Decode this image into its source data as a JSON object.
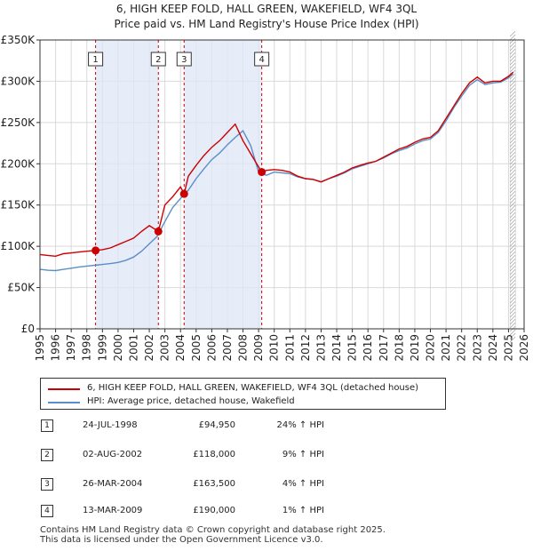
{
  "chart_data": {
    "type": "line",
    "title": "6, HIGH KEEP FOLD, HALL GREEN, WAKEFIELD, WF4 3QL",
    "subtitle": "Price paid vs. HM Land Registry's House Price Index (HPI)",
    "xlabel": "",
    "ylabel": "",
    "xlim": [
      1995,
      2026
    ],
    "ylim": [
      0,
      350000
    ],
    "y_ticks": [
      {
        "value": 0,
        "label": "£0"
      },
      {
        "value": 50000,
        "label": "£50K"
      },
      {
        "value": 100000,
        "label": "£100K"
      },
      {
        "value": 150000,
        "label": "£150K"
      },
      {
        "value": 200000,
        "label": "£200K"
      },
      {
        "value": 250000,
        "label": "£250K"
      },
      {
        "value": 300000,
        "label": "£300K"
      },
      {
        "value": 350000,
        "label": "£350K"
      }
    ],
    "x_ticks": [
      "1995",
      "1996",
      "1997",
      "1998",
      "1999",
      "2000",
      "2001",
      "2002",
      "2003",
      "2004",
      "2005",
      "2006",
      "2007",
      "2008",
      "2009",
      "2010",
      "2011",
      "2012",
      "2013",
      "2014",
      "2015",
      "2016",
      "2017",
      "2018",
      "2019",
      "2020",
      "2021",
      "2022",
      "2023",
      "2024",
      "2025",
      "2026"
    ],
    "grid": true,
    "series": [
      {
        "name": "6, HIGH KEEP FOLD, HALL GREEN, WAKEFIELD, WF4 3QL (detached house)",
        "color": "#cc0000",
        "x": [
          1995.0,
          1995.5,
          1996.0,
          1996.5,
          1997.0,
          1997.5,
          1998.0,
          1998.56,
          1999.0,
          1999.5,
          2000.0,
          2000.5,
          2001.0,
          2001.5,
          2002.0,
          2002.58,
          2003.0,
          2003.5,
          2004.0,
          2004.23,
          2004.5,
          2005.0,
          2005.5,
          2006.0,
          2006.5,
          2007.0,
          2007.5,
          2008.0,
          2008.5,
          2009.2,
          2009.5,
          2010.0,
          2010.5,
          2011.0,
          2011.5,
          2012.0,
          2012.5,
          2013.0,
          2013.5,
          2014.0,
          2014.5,
          2015.0,
          2015.5,
          2016.0,
          2016.5,
          2017.0,
          2017.5,
          2018.0,
          2018.5,
          2019.0,
          2019.5,
          2020.0,
          2020.5,
          2021.0,
          2021.5,
          2022.0,
          2022.5,
          2023.0,
          2023.5,
          2024.0,
          2024.5,
          2025.0,
          2025.3
        ],
        "values": [
          90000,
          89000,
          88000,
          91000,
          92000,
          93000,
          94000,
          94950,
          96000,
          98000,
          102000,
          106000,
          110000,
          118000,
          125000,
          118000,
          150000,
          160000,
          172000,
          163500,
          185000,
          198000,
          210000,
          220000,
          228000,
          238000,
          248000,
          228000,
          212000,
          190000,
          192000,
          193000,
          192000,
          190000,
          185000,
          182000,
          181000,
          178000,
          182000,
          186000,
          190000,
          195000,
          198000,
          201000,
          203000,
          208000,
          213000,
          218000,
          221000,
          226000,
          230000,
          232000,
          240000,
          255000,
          270000,
          285000,
          298000,
          305000,
          298000,
          300000,
          300000,
          306000,
          311000
        ]
      },
      {
        "name": "HPI: Average price, detached house, Wakefield",
        "color": "#5b8ec9",
        "x": [
          1995.0,
          1995.5,
          1996.0,
          1996.5,
          1997.0,
          1997.5,
          1998.0,
          1998.5,
          1999.0,
          1999.5,
          2000.0,
          2000.5,
          2001.0,
          2001.5,
          2002.0,
          2002.5,
          2003.0,
          2003.5,
          2004.0,
          2004.5,
          2005.0,
          2005.5,
          2006.0,
          2006.5,
          2007.0,
          2007.5,
          2008.0,
          2008.5,
          2009.0,
          2009.5,
          2010.0,
          2010.5,
          2011.0,
          2011.5,
          2012.0,
          2012.5,
          2013.0,
          2013.5,
          2014.0,
          2014.5,
          2015.0,
          2015.5,
          2016.0,
          2016.5,
          2017.0,
          2017.5,
          2018.0,
          2018.5,
          2019.0,
          2019.5,
          2020.0,
          2020.5,
          2021.0,
          2021.5,
          2022.0,
          2022.5,
          2023.0,
          2023.5,
          2024.0,
          2024.5,
          2025.0,
          2025.3
        ],
        "values": [
          72000,
          71000,
          70500,
          72000,
          73500,
          75000,
          76000,
          77000,
          78000,
          79000,
          80500,
          83000,
          87000,
          94000,
          103000,
          112000,
          130000,
          147000,
          158000,
          168000,
          182000,
          194000,
          205000,
          213000,
          223000,
          232000,
          240000,
          222000,
          190000,
          186000,
          190000,
          189000,
          188000,
          184000,
          182000,
          181000,
          178000,
          182000,
          185000,
          189000,
          194000,
          197000,
          200000,
          203000,
          207000,
          212000,
          216000,
          219000,
          224000,
          228000,
          230000,
          238000,
          252000,
          268000,
          282000,
          295000,
          302000,
          296000,
          298000,
          299000,
          304000,
          309000
        ]
      }
    ],
    "annotations": [
      {
        "num": "1",
        "x": 1998.56,
        "price": 94950
      },
      {
        "num": "2",
        "x": 2002.58,
        "price": 118000
      },
      {
        "num": "3",
        "x": 2004.23,
        "price": 163500
      },
      {
        "num": "4",
        "x": 2009.2,
        "price": 190000
      }
    ]
  },
  "legend": {
    "property": "6, HIGH KEEP FOLD, HALL GREEN, WAKEFIELD, WF4 3QL (detached house)",
    "hpi": "HPI: Average price, detached house, Wakefield",
    "property_color": "#cc0000",
    "hpi_color": "#5b8ec9"
  },
  "transactions": [
    {
      "num": "1",
      "date": "24-JUL-1998",
      "price": "£94,950",
      "hpi": "24% ↑ HPI"
    },
    {
      "num": "2",
      "date": "02-AUG-2002",
      "price": "£118,000",
      "hpi": "9% ↑ HPI"
    },
    {
      "num": "3",
      "date": "26-MAR-2004",
      "price": "£163,500",
      "hpi": "4% ↑ HPI"
    },
    {
      "num": "4",
      "date": "13-MAR-2009",
      "price": "£190,000",
      "hpi": "1% ↑ HPI"
    }
  ],
  "footer": {
    "line1": "Contains HM Land Registry data © Crown copyright and database right 2025.",
    "line2": "This data is licensed under the Open Government Licence v3.0."
  },
  "colors": {
    "shade": "#dde6f5",
    "grid": "#d9d9d9",
    "vline": "#cc0000",
    "hatch": "#999999"
  }
}
